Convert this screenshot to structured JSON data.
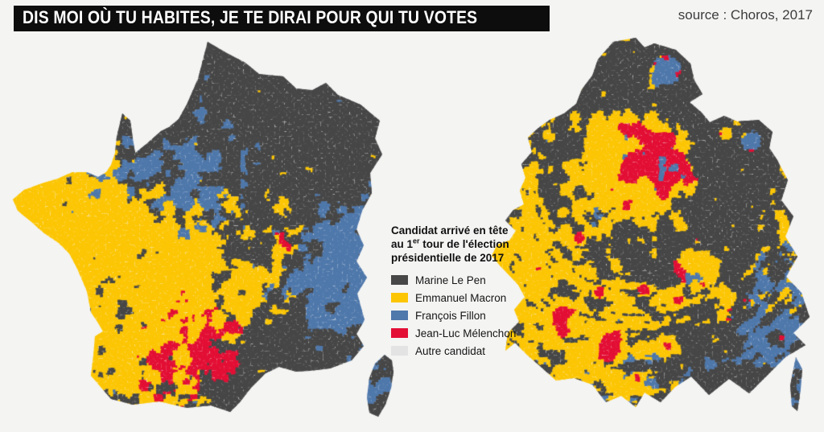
{
  "header": {
    "title": "DIS MOI OÙ TU HABITES, JE TE DIRAI POUR QUI TU VOTES",
    "source": "source : Choros, 2017"
  },
  "legend": {
    "title_line1": "Candidat arrivé en tête",
    "title_line2_pre": "au 1",
    "title_line2_sup": "er",
    "title_line2_post": " tour de l'élection",
    "title_line3": "présidentielle de 2017",
    "items": [
      {
        "label": "Marine Le Pen",
        "color": "#474747"
      },
      {
        "label": "Emmanuel Macron",
        "color": "#fcc605"
      },
      {
        "label": "François Fillon",
        "color": "#4f78ab"
      },
      {
        "label": "Jean-Luc Mélenchon",
        "color": "#e30f35"
      },
      {
        "label": "Autre candidat",
        "color": "#e3e3e3"
      }
    ]
  },
  "maps": {
    "palette": {
      "lepen": "#474747",
      "macron": "#fcc605",
      "fillon": "#4f78ab",
      "melenchon": "#e30f35",
      "autre": "#e6e6e6",
      "page_background": "#f4f4f3"
    }
  }
}
